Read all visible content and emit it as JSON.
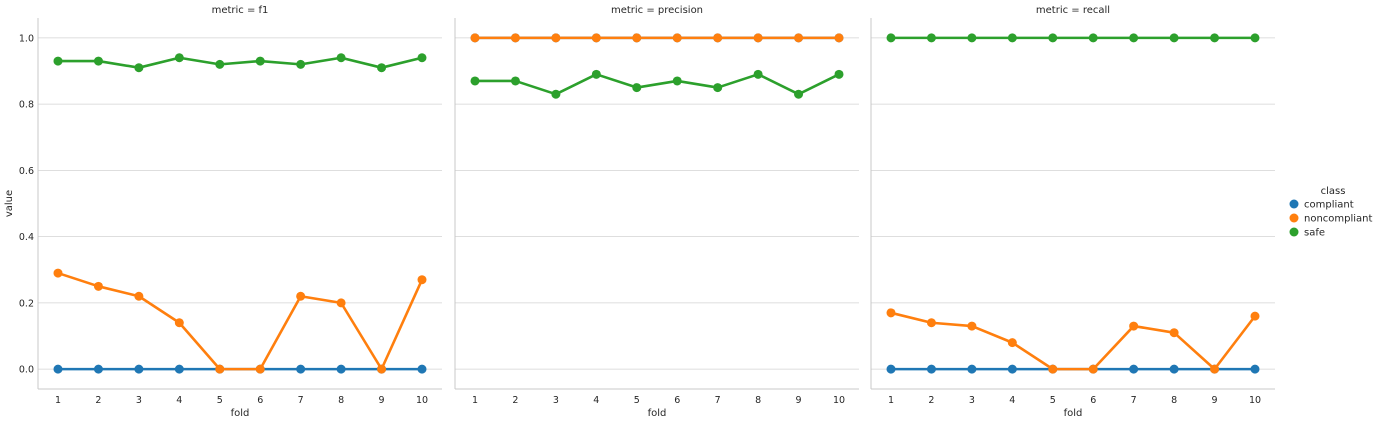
{
  "chart_data": {
    "type": "line",
    "x": [
      1,
      2,
      3,
      4,
      5,
      6,
      7,
      8,
      9,
      10
    ],
    "xlabel": "fold",
    "ylabel": "value",
    "ylim": [
      -0.06,
      1.06
    ],
    "yticks": [
      "0.0",
      "0.2",
      "0.4",
      "0.6",
      "0.8",
      "1.0"
    ],
    "grid": "horizontal",
    "legend": {
      "title": "class",
      "placement": "right",
      "entries": [
        {
          "name": "compliant",
          "color": "#1f77b4"
        },
        {
          "name": "noncompliant",
          "color": "#ff7f0e"
        },
        {
          "name": "safe",
          "color": "#2ca02c"
        }
      ]
    },
    "panels": [
      {
        "title": "metric = f1",
        "series": [
          {
            "name": "compliant",
            "color": "#1f77b4",
            "values": [
              0,
              0,
              0,
              0,
              0,
              0,
              0,
              0,
              0,
              0
            ]
          },
          {
            "name": "noncompliant",
            "color": "#ff7f0e",
            "values": [
              0.29,
              0.25,
              0.22,
              0.14,
              0,
              0,
              0.22,
              0.2,
              0,
              0.27
            ]
          },
          {
            "name": "safe",
            "color": "#2ca02c",
            "values": [
              0.93,
              0.93,
              0.91,
              0.94,
              0.92,
              0.93,
              0.92,
              0.94,
              0.91,
              0.94
            ]
          }
        ]
      },
      {
        "title": "metric = precision",
        "series": [
          {
            "name": "compliant",
            "color": "#1f77b4",
            "values": [
              1,
              1,
              1,
              1,
              1,
              1,
              1,
              1,
              1,
              1
            ]
          },
          {
            "name": "noncompliant",
            "color": "#ff7f0e",
            "values": [
              1,
              1,
              1,
              1,
              1,
              1,
              1,
              1,
              1,
              1
            ]
          },
          {
            "name": "safe",
            "color": "#2ca02c",
            "values": [
              0.87,
              0.87,
              0.83,
              0.89,
              0.85,
              0.87,
              0.85,
              0.89,
              0.83,
              0.89
            ]
          }
        ]
      },
      {
        "title": "metric = recall",
        "series": [
          {
            "name": "compliant",
            "color": "#1f77b4",
            "values": [
              0,
              0,
              0,
              0,
              0,
              0,
              0,
              0,
              0,
              0
            ]
          },
          {
            "name": "noncompliant",
            "color": "#ff7f0e",
            "values": [
              0.17,
              0.14,
              0.13,
              0.08,
              0,
              0,
              0.13,
              0.11,
              0,
              0.16
            ]
          },
          {
            "name": "safe",
            "color": "#2ca02c",
            "values": [
              1,
              1,
              1,
              1,
              1,
              1,
              1,
              1,
              1,
              1
            ]
          }
        ]
      }
    ]
  }
}
